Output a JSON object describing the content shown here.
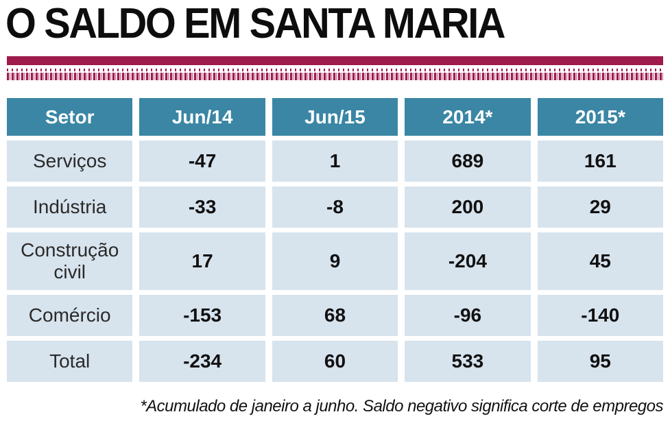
{
  "title": "O SALDO EM SANTA MARIA",
  "colors": {
    "maroon_bar": "#9e1b4c",
    "header_teal": "#3a86a4",
    "row_light_blue": "#d7e3ed",
    "text": "#1a1a1a"
  },
  "chart_data": {
    "type": "table",
    "title": "O SALDO EM SANTA MARIA",
    "columns": [
      "Setor",
      "Jun/14",
      "Jun/15",
      "2014*",
      "2015*"
    ],
    "rows": [
      [
        "Serviços",
        "-47",
        "1",
        "689",
        "161"
      ],
      [
        "Indústria",
        "-33",
        "-8",
        "200",
        "29"
      ],
      [
        "Construção civil",
        "17",
        "9",
        "-204",
        "45"
      ],
      [
        "Comércio",
        "-153",
        "68",
        "-96",
        "-140"
      ],
      [
        "Total",
        "-234",
        "60",
        "533",
        "95"
      ]
    ],
    "footnote": "*Acumulado de janeiro a junho. Saldo negativo significa corte de empregos"
  }
}
